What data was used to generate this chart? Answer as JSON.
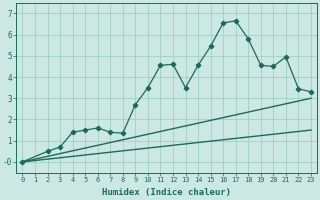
{
  "xlabel": "Humidex (Indice chaleur)",
  "bg_color": "#cce8e2",
  "grid_color": "#99ccbb",
  "line_color": "#1a6b5a",
  "xlim": [
    -0.5,
    23.5
  ],
  "ylim": [
    -0.5,
    7.5
  ],
  "xticks": [
    0,
    1,
    2,
    3,
    4,
    5,
    6,
    7,
    8,
    9,
    10,
    11,
    12,
    13,
    14,
    15,
    16,
    17,
    18,
    19,
    20,
    21,
    22,
    23
  ],
  "yticks": [
    0,
    1,
    2,
    3,
    4,
    5,
    6,
    7
  ],
  "ytick_labels": [
    "-0",
    "1",
    "2",
    "3",
    "4",
    "5",
    "6",
    "7"
  ],
  "line1_x": [
    0,
    23
  ],
  "line1_y": [
    0.0,
    3.0
  ],
  "line2_x": [
    0,
    23
  ],
  "line2_y": [
    0.0,
    1.5
  ],
  "jagged_x": [
    0,
    2,
    3,
    4,
    5,
    6,
    7,
    8,
    9,
    10,
    11,
    12,
    13,
    14,
    15,
    16,
    17,
    18,
    19,
    20,
    21,
    22,
    23
  ],
  "jagged_y": [
    0.0,
    0.5,
    0.7,
    1.4,
    1.5,
    1.6,
    1.4,
    1.35,
    2.7,
    3.5,
    4.55,
    4.6,
    3.5,
    4.55,
    5.45,
    6.55,
    6.65,
    5.8,
    4.55,
    4.5,
    4.95,
    3.45,
    3.3
  ]
}
